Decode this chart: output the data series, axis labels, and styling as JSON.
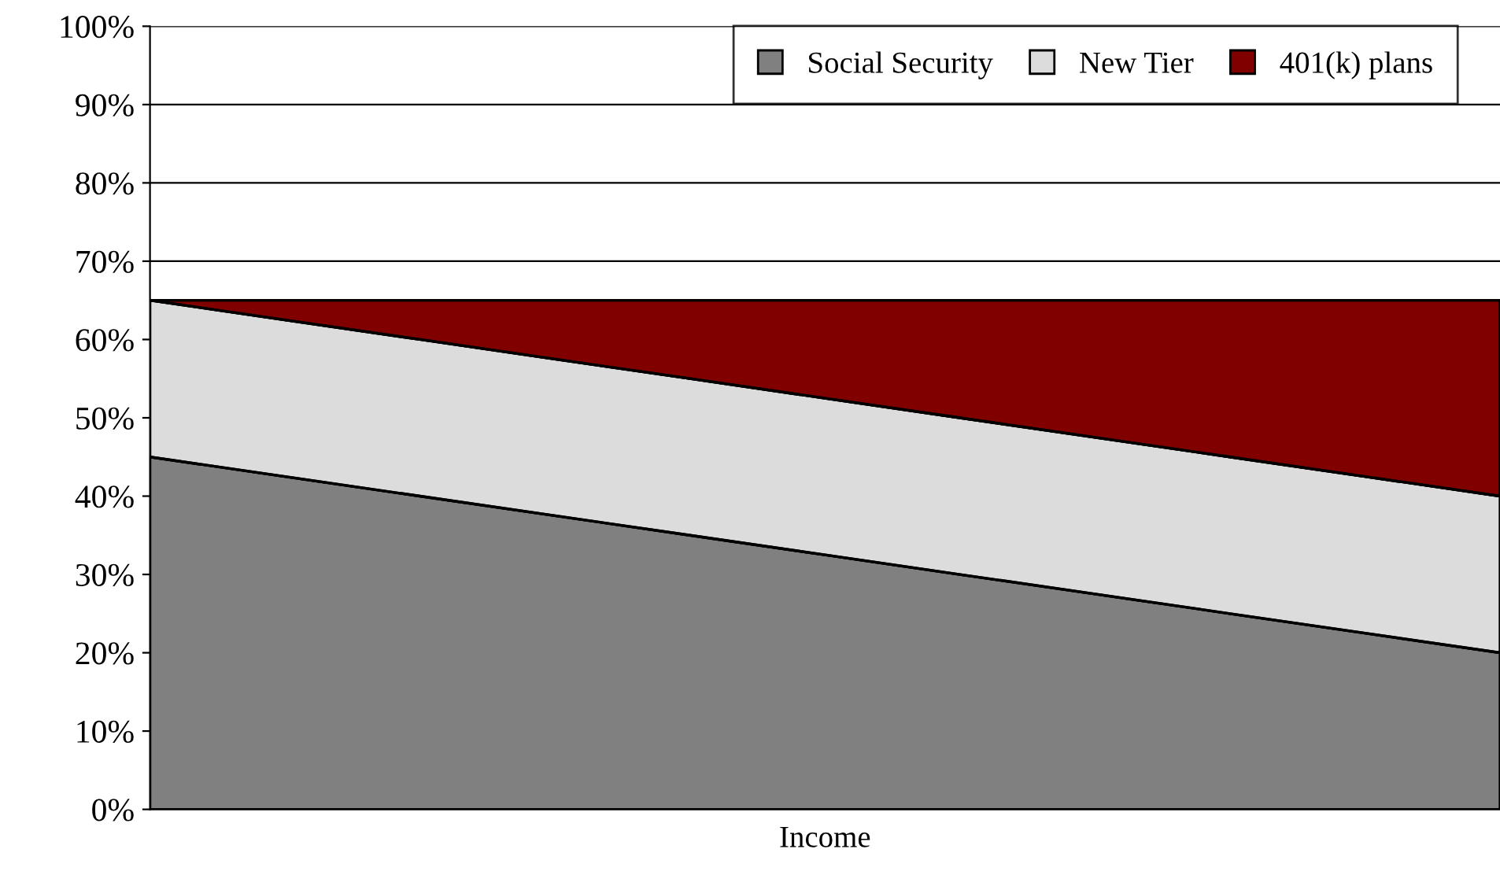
{
  "chart_data": {
    "type": "area",
    "stacked": true,
    "xlabel": "Income",
    "categories": [
      null,
      null,
      null,
      null,
      null,
      null,
      null,
      null,
      null,
      null,
      null
    ],
    "series": [
      {
        "name": "Social Security",
        "color": "#808080",
        "values": [
          45,
          42.5,
          40,
          37.5,
          35,
          32.5,
          30,
          27.5,
          25,
          22.5,
          20
        ]
      },
      {
        "name": "New Tier",
        "color": "#dcdcdc",
        "values": [
          20,
          20,
          20,
          20,
          20,
          20,
          20,
          20,
          20,
          20,
          20
        ]
      },
      {
        "name": "401(k) plans",
        "color": "#800000",
        "values": [
          0,
          2.5,
          5,
          7.5,
          10,
          12.5,
          15,
          17.5,
          20,
          22.5,
          25
        ]
      }
    ],
    "ylim": [
      0,
      100
    ],
    "yticks": [
      {
        "value": 0,
        "label": "0%"
      },
      {
        "value": 10,
        "label": "10%"
      },
      {
        "value": 20,
        "label": "20%"
      },
      {
        "value": 30,
        "label": "30%"
      },
      {
        "value": 40,
        "label": "40%"
      },
      {
        "value": 50,
        "label": "50%"
      },
      {
        "value": 60,
        "label": "60%"
      },
      {
        "value": 70,
        "label": "70%"
      },
      {
        "value": 80,
        "label": "80%"
      },
      {
        "value": 90,
        "label": "90%"
      },
      {
        "value": 100,
        "label": "100%"
      }
    ],
    "grid": "y",
    "legend": "top right"
  }
}
